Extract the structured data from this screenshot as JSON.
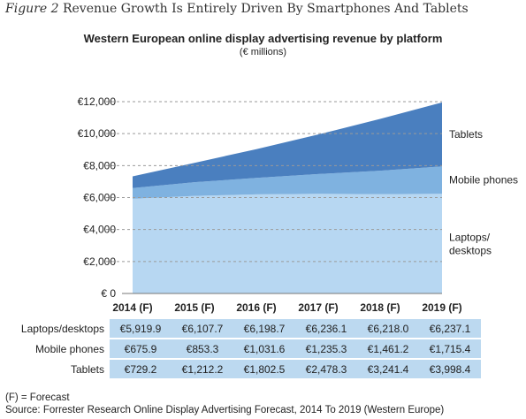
{
  "figure": {
    "label": "Figure 2",
    "title": "Revenue Growth Is Entirely Driven By Smartphones And Tablets"
  },
  "chart_data": {
    "type": "area",
    "stacked": true,
    "title": "Western European online display advertising revenue by platform",
    "subtitle": "(€ millions)",
    "categories": [
      "2014 (F)",
      "2015 (F)",
      "2016 (F)",
      "2017 (F)",
      "2018 (F)",
      "2019 (F)"
    ],
    "y_ticks": [
      "€ 0",
      "€2,000",
      "€4,000",
      "€6,000",
      "€8,000",
      "€10,000",
      "€12,000"
    ],
    "ylim": [
      0,
      12000
    ],
    "grid": true,
    "series": [
      {
        "name": "Laptops/ desktops",
        "values": [
          5919.9,
          6107.7,
          6198.7,
          6236.1,
          6218.0,
          6237.1
        ],
        "color": "#b7d7f2"
      },
      {
        "name": "Mobile phones",
        "values": [
          675.9,
          853.3,
          1031.6,
          1235.3,
          1461.2,
          1715.4
        ],
        "color": "#7fb2e0"
      },
      {
        "name": "Tablets",
        "values": [
          729.2,
          1212.2,
          1802.5,
          2478.3,
          3241.4,
          3998.4
        ],
        "color": "#4a7fbf"
      }
    ]
  },
  "table": {
    "rows": [
      {
        "label": "Laptops/desktops",
        "cells": [
          "€5,919.9",
          "€6,107.7",
          "€6,198.7",
          "€6,236.1",
          "€6,218.0",
          "€6,237.1"
        ]
      },
      {
        "label": "Mobile phones",
        "cells": [
          "€675.9",
          "€853.3",
          "€1,031.6",
          "€1,235.3",
          "€1,461.2",
          "€1,715.4"
        ]
      },
      {
        "label": "Tablets",
        "cells": [
          "€729.2",
          "€1,212.2",
          "€1,802.5",
          "€2,478.3",
          "€3,241.4",
          "€3,998.4"
        ]
      }
    ]
  },
  "footnotes": {
    "forecast": "(F) = Forecast",
    "source": "Source: Forrester Research Online Display Advertising Forecast, 2014 To 2019 (Western Europe)"
  }
}
